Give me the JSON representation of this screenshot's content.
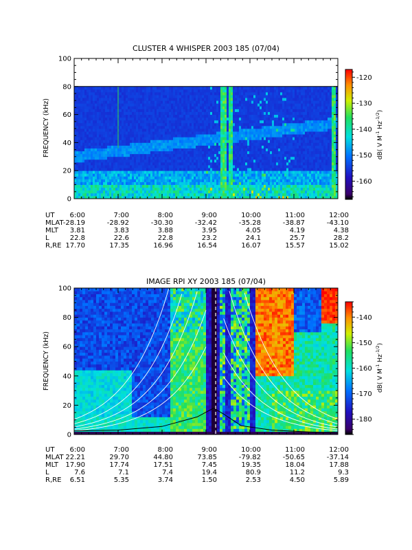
{
  "chart_data": [
    {
      "type": "heatmap",
      "title": "CLUSTER 4 WHISPER 2003 185 (07/04)",
      "ylabel": "FREQUENCY (kHz)",
      "ylim": [
        0,
        100
      ],
      "y_ticks": [
        "0",
        "20",
        "40",
        "60",
        "80",
        "100"
      ],
      "x_ticks": [
        "6:00",
        "7:00",
        "8:00",
        "9:00",
        "10:00",
        "11:00",
        "12:00"
      ],
      "data_ceiling_khz": 80,
      "colorbar": {
        "label": "dB( V M",
        "label_sup1": "-1",
        "label_mid": " Hz",
        "label_sup2": "-1/2",
        "label_end": ")",
        "range": [
          -167,
          -117
        ],
        "ticks": [
          "-120",
          "-130",
          "-140",
          "-150",
          "-160"
        ],
        "tick_values": [
          -120,
          -130,
          -140,
          -150,
          -160
        ]
      },
      "ephemeris": {
        "labels": [
          "UT",
          "MLAT",
          "MLT",
          "L",
          "R,RE"
        ],
        "columns": [
          [
            "6:00",
            "-28.19",
            "3.81",
            "22.8",
            "17.70"
          ],
          [
            "7:00",
            "-28.92",
            "3.83",
            "22.6",
            "17.35"
          ],
          [
            "8:00",
            "-30.30",
            "3.88",
            "22.8",
            "16.96"
          ],
          [
            "9:00",
            "-32.42",
            "3.95",
            "23.2",
            "16.54"
          ],
          [
            "10:00",
            "-35.28",
            "4.05",
            "24.1",
            "16.07"
          ],
          [
            "11:00",
            "-38.87",
            "4.19",
            "25.7",
            "15.57"
          ],
          [
            "12:00",
            "-43.10",
            "4.38",
            "28.2",
            "15.02"
          ]
        ]
      }
    },
    {
      "type": "heatmap",
      "title": "IMAGE RPI XY 2003 185 (07/04)",
      "ylabel": "FREQUENCY (kHz)",
      "ylim": [
        0,
        100
      ],
      "y_ticks": [
        "0",
        "20",
        "40",
        "60",
        "80",
        "100"
      ],
      "x_ticks": [
        "6:00",
        "7:00",
        "8:00",
        "9:00",
        "10:00",
        "11:00",
        "12:00"
      ],
      "colorbar": {
        "label": "dB( V M",
        "label_sup1": "-1",
        "label_mid": " Hz",
        "label_sup2": "-1/2",
        "label_end": ")",
        "range": [
          -186,
          -134
        ],
        "ticks": [
          "-140",
          "-150",
          "-160",
          "-170",
          "-180"
        ],
        "tick_values": [
          -140,
          -150,
          -160,
          -170,
          -180
        ]
      },
      "plasma_frequency_curve": [
        [
          6.0,
          2.5
        ],
        [
          7.0,
          3.0
        ],
        [
          8.0,
          5.5
        ],
        [
          8.8,
          12
        ],
        [
          9.17,
          18
        ],
        [
          9.4,
          14
        ],
        [
          9.8,
          6
        ],
        [
          10.5,
          3.0
        ],
        [
          11.5,
          1.5
        ],
        [
          12.0,
          1.0
        ]
      ],
      "ephemeris": {
        "labels": [
          "UT",
          "MLAT",
          "MLT",
          "L",
          "R,RE"
        ],
        "columns": [
          [
            "6:00",
            "22.21",
            "17.90",
            "7.6",
            "6.51"
          ],
          [
            "7:00",
            "29.70",
            "17.74",
            "7.1",
            "5.35"
          ],
          [
            "8:00",
            "44.80",
            "17.51",
            "7.4",
            "3.74"
          ],
          [
            "9:00",
            "73.85",
            "7.45",
            "19.4",
            "1.50"
          ],
          [
            "10:00",
            "-79.82",
            "19.35",
            "80.9",
            "2.53"
          ],
          [
            "11:00",
            "-50.65",
            "18.04",
            "11.2",
            "4.50"
          ],
          [
            "12:00",
            "-37.14",
            "17.88",
            "9.3",
            "5.89"
          ]
        ]
      }
    }
  ]
}
